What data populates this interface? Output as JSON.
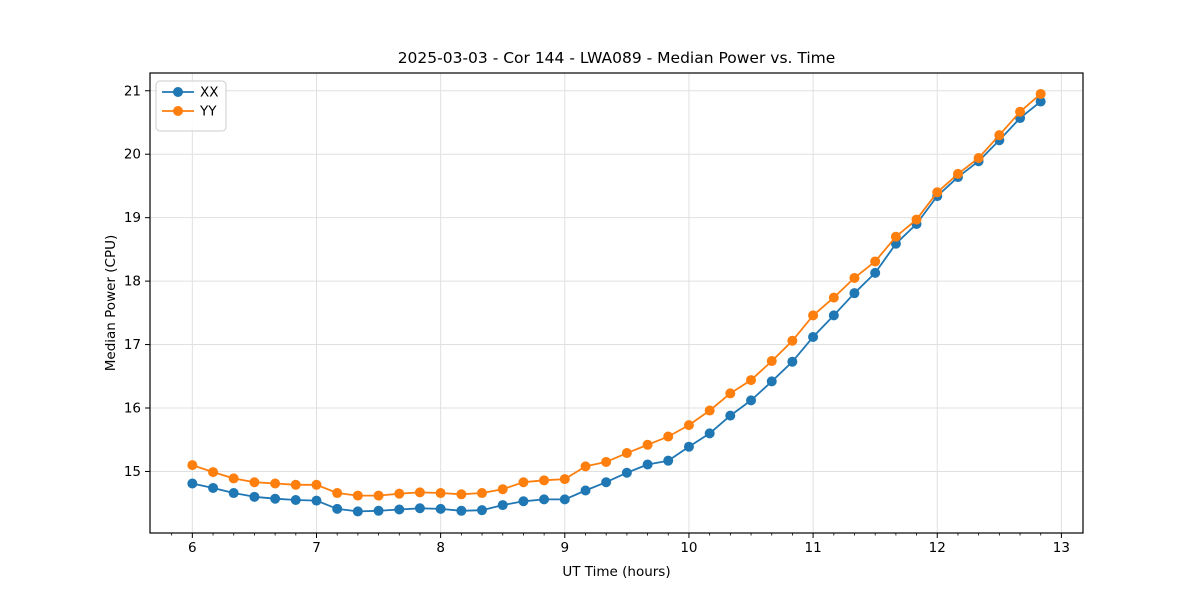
{
  "figure": {
    "background": "#ffffff",
    "text_color": "#000000",
    "grid_color": "#e0e0e0",
    "spine_color": "#000000"
  },
  "chart_data": {
    "type": "line",
    "title": "2025-03-03 - Cor 144 - LWA089 - Median Power vs. Time",
    "xlabel": "UT Time (hours)",
    "ylabel": "Median Power (CPU)",
    "xlim": [
      5.659,
      13.174
    ],
    "ylim": [
      14.03,
      21.28
    ],
    "x_major_ticks": [
      6,
      7,
      8,
      9,
      10,
      11,
      12,
      13
    ],
    "y_major_ticks": [
      15,
      16,
      17,
      18,
      19,
      20,
      21
    ],
    "x_minor_step": 0.16667,
    "grid": true,
    "legend_position": "upper left",
    "x": [
      6.0,
      6.167,
      6.333,
      6.5,
      6.667,
      6.833,
      7.0,
      7.167,
      7.333,
      7.5,
      7.667,
      7.833,
      8.0,
      8.167,
      8.333,
      8.5,
      8.667,
      8.833,
      9.0,
      9.167,
      9.333,
      9.5,
      9.667,
      9.833,
      10.0,
      10.167,
      10.333,
      10.5,
      10.667,
      10.833,
      11.0,
      11.167,
      11.333,
      11.5,
      11.667,
      11.833,
      12.0,
      12.167,
      12.333,
      12.5,
      12.667,
      12.833
    ],
    "series": [
      {
        "name": "XX",
        "color": "#1f77b4",
        "values": [
          14.81,
          14.74,
          14.66,
          14.6,
          14.57,
          14.55,
          14.54,
          14.41,
          14.37,
          14.38,
          14.4,
          14.42,
          14.41,
          14.38,
          14.39,
          14.47,
          14.53,
          14.56,
          14.56,
          14.7,
          14.83,
          14.98,
          15.11,
          15.17,
          15.39,
          15.6,
          15.88,
          16.12,
          16.42,
          16.73,
          17.12,
          17.46,
          17.81,
          18.13,
          18.59,
          18.9,
          19.34,
          19.64,
          19.89,
          20.22,
          20.57,
          20.83
        ]
      },
      {
        "name": "YY",
        "color": "#ff7f0e",
        "values": [
          15.1,
          14.99,
          14.89,
          14.83,
          14.81,
          14.79,
          14.79,
          14.66,
          14.62,
          14.62,
          14.65,
          14.67,
          14.66,
          14.64,
          14.66,
          14.72,
          14.83,
          14.86,
          14.88,
          15.08,
          15.15,
          15.29,
          15.42,
          15.55,
          15.73,
          15.96,
          16.23,
          16.44,
          16.74,
          17.06,
          17.46,
          17.74,
          18.05,
          18.31,
          18.7,
          18.97,
          19.4,
          19.69,
          19.94,
          20.3,
          20.67,
          20.95
        ]
      }
    ]
  }
}
